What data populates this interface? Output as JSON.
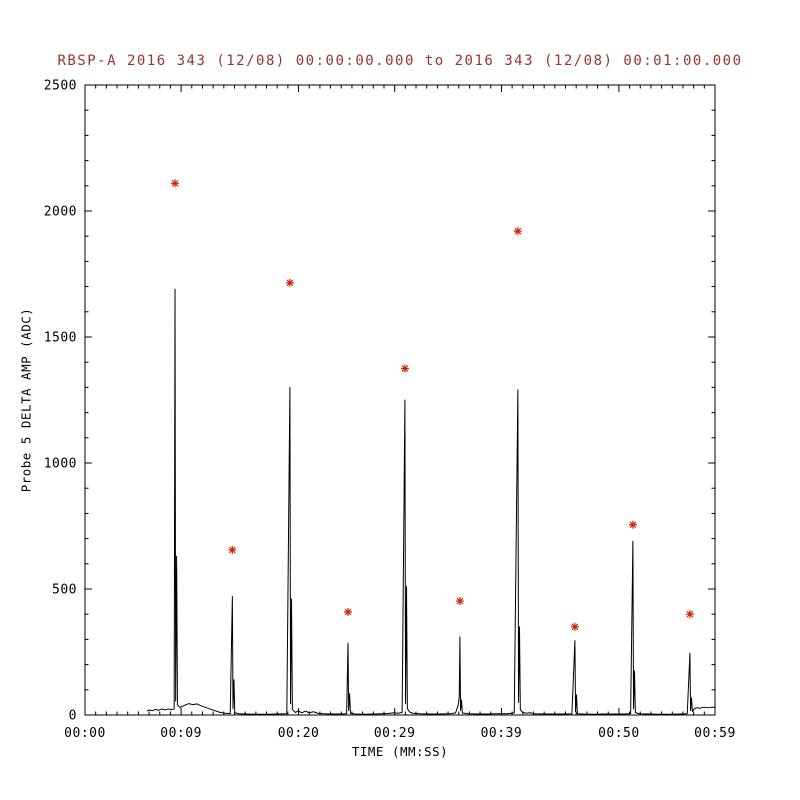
{
  "chart_data": {
    "type": "line",
    "title": "RBSP-A 2016 343 (12/08) 00:00:00.000 to 2016 343 (12/08) 00:01:00.000",
    "xlabel": "TIME (MM:SS)",
    "ylabel": "Probe 5 DELTA AMP (ADC)",
    "xlim": [
      0,
      59
    ],
    "ylim": [
      0,
      2500
    ],
    "grid": false,
    "legend": "none",
    "xticks": [
      {
        "t": 0,
        "label": "00:00"
      },
      {
        "t": 9,
        "label": "00:09"
      },
      {
        "t": 20,
        "label": "00:20"
      },
      {
        "t": 29,
        "label": "00:29"
      },
      {
        "t": 39,
        "label": "00:39"
      },
      {
        "t": 50,
        "label": "00:50"
      },
      {
        "t": 59,
        "label": "00:59"
      }
    ],
    "yticks": [
      0,
      500,
      1000,
      1500,
      2000,
      2500
    ],
    "y_minor_step": 100,
    "x_minor_step": 1,
    "colors": {
      "line": "#000000",
      "marker": "#cc2200",
      "title": "#993333",
      "axis": "#000000"
    },
    "series": [
      {
        "name": "probe5-delta-amp-trace",
        "type": "line"
      },
      {
        "name": "peak-markers",
        "type": "scatter-asterisk"
      }
    ],
    "peaks": [
      [
        8.43,
        2110
      ],
      [
        13.8,
        655
      ],
      [
        19.19,
        1715
      ],
      [
        24.63,
        409
      ],
      [
        29.96,
        1375
      ],
      [
        35.11,
        452
      ],
      [
        40.54,
        1920
      ],
      [
        45.88,
        350
      ],
      [
        51.31,
        755
      ],
      [
        56.65,
        400
      ]
    ],
    "line": [
      [
        5.8,
        16
      ],
      [
        6.0,
        20
      ],
      [
        6.3,
        17
      ],
      [
        6.6,
        22
      ],
      [
        6.9,
        19
      ],
      [
        7.2,
        24
      ],
      [
        7.5,
        20
      ],
      [
        7.8,
        24
      ],
      [
        8.1,
        21
      ],
      [
        8.35,
        24
      ],
      [
        8.43,
        1690
      ],
      [
        8.49,
        55
      ],
      [
        8.58,
        630
      ],
      [
        8.66,
        40
      ],
      [
        8.9,
        30
      ],
      [
        9.3,
        38
      ],
      [
        9.7,
        45
      ],
      [
        10.1,
        41
      ],
      [
        10.5,
        44
      ],
      [
        10.9,
        36
      ],
      [
        11.3,
        30
      ],
      [
        11.7,
        24
      ],
      [
        12.1,
        18
      ],
      [
        12.6,
        11
      ],
      [
        13.1,
        7
      ],
      [
        13.6,
        6
      ],
      [
        13.8,
        470
      ],
      [
        13.86,
        25
      ],
      [
        13.95,
        140
      ],
      [
        14.03,
        9
      ],
      [
        14.4,
        5
      ],
      [
        15,
        4
      ],
      [
        16,
        3
      ],
      [
        17,
        3
      ],
      [
        18,
        4
      ],
      [
        18.9,
        5
      ],
      [
        19.19,
        1300
      ],
      [
        19.25,
        45
      ],
      [
        19.34,
        460
      ],
      [
        19.42,
        22
      ],
      [
        19.7,
        10
      ],
      [
        19.95,
        16
      ],
      [
        20.3,
        9
      ],
      [
        20.65,
        15
      ],
      [
        21,
        9
      ],
      [
        21.4,
        13
      ],
      [
        21.8,
        7
      ],
      [
        22.3,
        5
      ],
      [
        23.2,
        4
      ],
      [
        24,
        4
      ],
      [
        24.5,
        5
      ],
      [
        24.63,
        285
      ],
      [
        24.69,
        18
      ],
      [
        24.78,
        85
      ],
      [
        24.86,
        7
      ],
      [
        25.3,
        4
      ],
      [
        26.2,
        3
      ],
      [
        27,
        4
      ],
      [
        27.8,
        5
      ],
      [
        28.4,
        6
      ],
      [
        28.9,
        9
      ],
      [
        29.3,
        7
      ],
      [
        29.7,
        10
      ],
      [
        29.96,
        1250
      ],
      [
        30.02,
        45
      ],
      [
        30.11,
        510
      ],
      [
        30.19,
        25
      ],
      [
        30.4,
        12
      ],
      [
        30.7,
        7
      ],
      [
        31.4,
        5
      ],
      [
        32.3,
        4
      ],
      [
        33.2,
        4
      ],
      [
        34.1,
        5
      ],
      [
        34.7,
        8
      ],
      [
        34.95,
        40
      ],
      [
        35.05,
        72
      ],
      [
        35.11,
        310
      ],
      [
        35.17,
        18
      ],
      [
        35.26,
        60
      ],
      [
        35.34,
        8
      ],
      [
        35.9,
        5
      ],
      [
        36.8,
        4
      ],
      [
        37.7,
        4
      ],
      [
        38.6,
        5
      ],
      [
        39.5,
        5
      ],
      [
        40.2,
        8
      ],
      [
        40.54,
        1290
      ],
      [
        40.6,
        50
      ],
      [
        40.69,
        350
      ],
      [
        40.77,
        20
      ],
      [
        41,
        11
      ],
      [
        41.3,
        7
      ],
      [
        41.7,
        9
      ],
      [
        42.1,
        5
      ],
      [
        43,
        4
      ],
      [
        44,
        4
      ],
      [
        45,
        4
      ],
      [
        45.6,
        5
      ],
      [
        45.88,
        295
      ],
      [
        45.94,
        13
      ],
      [
        46.03,
        80
      ],
      [
        46.11,
        5
      ],
      [
        46.6,
        4
      ],
      [
        47.6,
        3
      ],
      [
        48.6,
        4
      ],
      [
        49.6,
        4
      ],
      [
        50.6,
        4
      ],
      [
        51.1,
        6
      ],
      [
        51.31,
        690
      ],
      [
        51.37,
        25
      ],
      [
        51.46,
        175
      ],
      [
        51.54,
        10
      ],
      [
        51.9,
        5
      ],
      [
        52.8,
        4
      ],
      [
        53.8,
        3
      ],
      [
        54.8,
        3
      ],
      [
        55.8,
        4
      ],
      [
        56.4,
        5
      ],
      [
        56.65,
        245
      ],
      [
        56.71,
        18
      ],
      [
        56.8,
        68
      ],
      [
        56.88,
        14
      ],
      [
        57.05,
        24
      ],
      [
        57.3,
        29
      ],
      [
        57.6,
        27
      ],
      [
        57.95,
        31
      ],
      [
        58.4,
        29
      ],
      [
        58.75,
        31
      ],
      [
        59,
        31
      ]
    ]
  }
}
